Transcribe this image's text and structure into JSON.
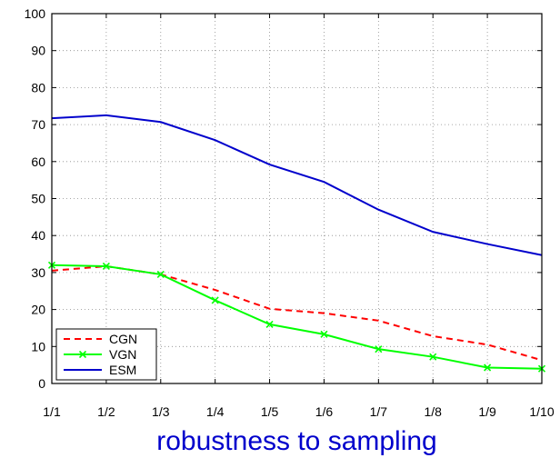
{
  "chart_data": {
    "type": "line",
    "title": "",
    "xlabel": "robustness to sampling",
    "ylabel": "",
    "categories": [
      "1/1",
      "1/2",
      "1/3",
      "1/4",
      "1/5",
      "1/6",
      "1/7",
      "1/8",
      "1/9",
      "1/10"
    ],
    "ylim": [
      0,
      100
    ],
    "yticks": [
      0,
      10,
      20,
      30,
      40,
      50,
      60,
      70,
      80,
      90,
      100
    ],
    "grid": true,
    "legend_position": "bottom-left",
    "series": [
      {
        "name": "CGN",
        "color": "#ff0000",
        "style": "dashed",
        "marker": "none",
        "values": [
          30.5,
          31.7,
          29.5,
          25.3,
          20.2,
          19.0,
          17.0,
          12.8,
          10.5,
          6.3
        ]
      },
      {
        "name": "VGN",
        "color": "#00ff00",
        "style": "solid",
        "marker": "x",
        "values": [
          32.0,
          31.7,
          29.5,
          22.5,
          16.0,
          13.3,
          9.3,
          7.2,
          4.3,
          4.0
        ]
      },
      {
        "name": "ESM",
        "color": "#0000cc",
        "style": "solid",
        "marker": "none",
        "values": [
          71.7,
          72.5,
          70.7,
          65.8,
          59.2,
          54.5,
          47.0,
          41.0,
          37.7,
          34.7
        ]
      }
    ]
  }
}
